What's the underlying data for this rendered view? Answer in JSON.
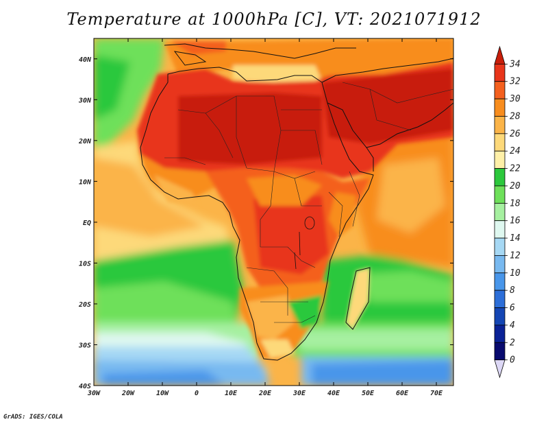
{
  "title": "Temperature at 1000hPa [C], VT: 2021071912",
  "footer": "GrADS: IGES/COLA",
  "map": {
    "lon_range": [
      -30,
      75
    ],
    "lat_range": [
      -40,
      45
    ],
    "x_ticks": [
      {
        "lon": -30,
        "label": "30W"
      },
      {
        "lon": -20,
        "label": "20W"
      },
      {
        "lon": -10,
        "label": "10W"
      },
      {
        "lon": 0,
        "label": "0"
      },
      {
        "lon": 10,
        "label": "10E"
      },
      {
        "lon": 20,
        "label": "20E"
      },
      {
        "lon": 30,
        "label": "30E"
      },
      {
        "lon": 40,
        "label": "40E"
      },
      {
        "lon": 50,
        "label": "50E"
      },
      {
        "lon": 60,
        "label": "60E"
      },
      {
        "lon": 70,
        "label": "70E"
      }
    ],
    "y_ticks": [
      {
        "lat": 40,
        "label": "40N"
      },
      {
        "lat": 30,
        "label": "30N"
      },
      {
        "lat": 20,
        "label": "20N"
      },
      {
        "lat": 10,
        "label": "10N"
      },
      {
        "lat": 0,
        "label": "EQ"
      },
      {
        "lat": -10,
        "label": "10S"
      },
      {
        "lat": -20,
        "label": "20S"
      },
      {
        "lat": -30,
        "label": "30S"
      },
      {
        "lat": -40,
        "label": "40S"
      }
    ]
  },
  "colorbar": {
    "labels": [
      "34",
      "32",
      "30",
      "28",
      "26",
      "24",
      "22",
      "20",
      "18",
      "16",
      "14",
      "12",
      "10",
      "8",
      "6",
      "4",
      "2",
      "0"
    ],
    "colors": [
      "#c81e0a",
      "#e8351a",
      "#f4601e",
      "#f88d1e",
      "#fbb448",
      "#fdd97a",
      "#fff0a8",
      "#2cc83c",
      "#6ee05a",
      "#a6f0a0",
      "#dff8f0",
      "#a6d8f4",
      "#78b9f0",
      "#4896ea",
      "#2c6ed8",
      "#1446b4",
      "#0a2296",
      "#080a6e",
      "#ddd8f6"
    ]
  }
}
